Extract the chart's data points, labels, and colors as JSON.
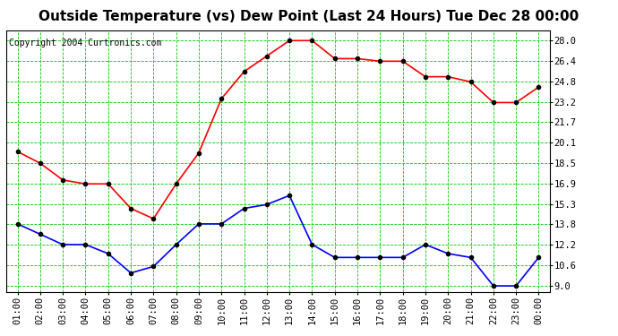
{
  "title": "Outside Temperature (vs) Dew Point (Last 24 Hours) Tue Dec 28 00:00",
  "copyright": "Copyright 2004 Curtronics.com",
  "x_labels": [
    "01:00",
    "02:00",
    "03:00",
    "04:00",
    "05:00",
    "06:00",
    "07:00",
    "08:00",
    "09:00",
    "10:00",
    "11:00",
    "12:00",
    "13:00",
    "14:00",
    "15:00",
    "16:00",
    "17:00",
    "18:00",
    "19:00",
    "20:00",
    "21:00",
    "22:00",
    "23:00",
    "00:00"
  ],
  "temp_data": [
    19.4,
    18.5,
    17.2,
    16.9,
    16.9,
    15.0,
    14.2,
    16.9,
    19.3,
    23.5,
    25.6,
    26.8,
    28.0,
    28.0,
    26.6,
    26.6,
    26.4,
    26.4,
    25.2,
    25.2,
    24.8,
    23.2,
    23.2,
    24.4
  ],
  "dew_data": [
    13.8,
    13.0,
    12.2,
    12.2,
    11.5,
    10.0,
    10.5,
    12.2,
    13.8,
    13.8,
    15.0,
    15.3,
    16.0,
    12.2,
    11.2,
    11.2,
    11.2,
    11.2,
    12.2,
    11.5,
    11.2,
    9.0,
    9.0,
    11.2
  ],
  "temp_color": "red",
  "dew_color": "blue",
  "bg_color": "white",
  "plot_bg_color": "white",
  "grid_color": "#00cc00",
  "yticks": [
    9.0,
    10.6,
    12.2,
    13.8,
    15.3,
    16.9,
    18.5,
    20.1,
    21.7,
    23.2,
    24.8,
    26.4,
    28.0
  ],
  "ylim": [
    8.5,
    28.8
  ],
  "marker": "o",
  "marker_size": 3,
  "marker_color": "black",
  "line_width": 1.2,
  "title_fontsize": 11,
  "axis_fontsize": 7.5,
  "copyright_fontsize": 7
}
